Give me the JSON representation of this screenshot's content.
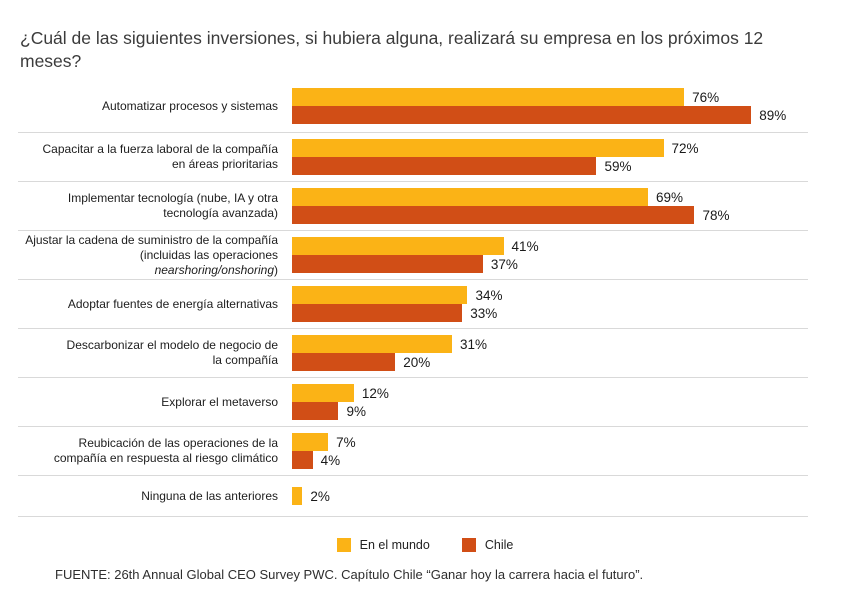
{
  "title": "¿Cuál de las siguientes inversiones, si hubiera alguna, realizará su empresa en los próximos 12 meses?",
  "chart_data": {
    "type": "bar",
    "orientation": "horizontal",
    "unit": "%",
    "xlim": [
      0,
      100
    ],
    "grid": false,
    "legend_position": "bottom",
    "series": [
      {
        "name": "En el mundo",
        "color": "#FBB316",
        "values": [
          76,
          72,
          69,
          41,
          34,
          31,
          12,
          7,
          2
        ]
      },
      {
        "name": "Chile",
        "color": "#D14E16",
        "values": [
          89,
          59,
          78,
          37,
          33,
          20,
          9,
          4,
          null
        ]
      }
    ],
    "rows": [
      {
        "label_lines": [
          "Automatizar procesos y sistemas"
        ],
        "mundo": 76,
        "chile": 89
      },
      {
        "label_lines": [
          "Capacitar a la fuerza laboral de la compañía",
          "en áreas prioritarias"
        ],
        "mundo": 72,
        "chile": 59
      },
      {
        "label_lines": [
          "Implementar tecnología (nube, IA y otra",
          "tecnología avanzada)"
        ],
        "mundo": 69,
        "chile": 78
      },
      {
        "label_lines": [
          "Ajustar la cadena de suministro de la compañía",
          "(incluidas las operaciones |nearshoring/onshoring|)"
        ],
        "mundo": 41,
        "chile": 37
      },
      {
        "label_lines": [
          "Adoptar fuentes de energía alternativas"
        ],
        "mundo": 34,
        "chile": 33
      },
      {
        "label_lines": [
          "Descarbonizar el modelo de negocio de",
          "la compañía"
        ],
        "mundo": 31,
        "chile": 20
      },
      {
        "label_lines": [
          "Explorar el metaverso"
        ],
        "mundo": 12,
        "chile": 9
      },
      {
        "label_lines": [
          "Reubicación de las operaciones de la",
          "compañía en respuesta al riesgo climático"
        ],
        "mundo": 7,
        "chile": 4
      },
      {
        "label_lines": [
          "Ninguna de las anteriores"
        ],
        "mundo": 2,
        "chile": null
      }
    ]
  },
  "legend": {
    "items": [
      {
        "label": "En el mundo",
        "color": "#FBB316"
      },
      {
        "label": "Chile",
        "color": "#D14E16"
      }
    ]
  },
  "source": "FUENTE: 26th Annual Global CEO Survey PWC. Capítulo Chile “Ganar hoy la carrera hacia el futuro”."
}
